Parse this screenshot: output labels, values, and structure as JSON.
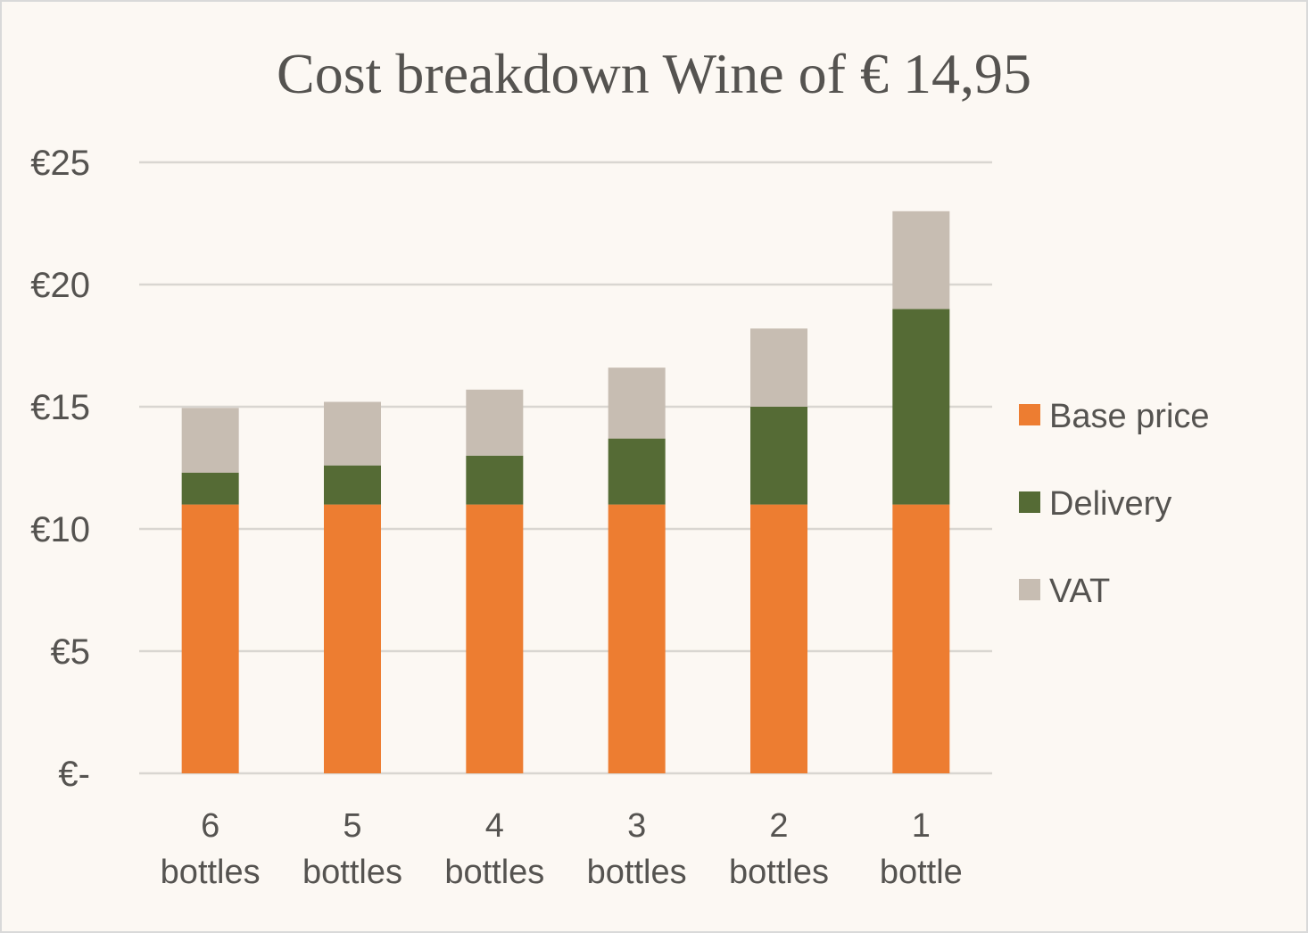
{
  "chart_data": {
    "type": "bar",
    "stacked": true,
    "title": "Cost breakdown Wine of € 14,95",
    "xlabel": "",
    "ylabel": "",
    "ylim": [
      0,
      25
    ],
    "yticks": [
      0,
      5,
      10,
      15,
      20,
      25
    ],
    "ytick_labels": [
      "€-",
      "€5",
      "€10",
      "€15",
      "€20",
      "€25"
    ],
    "categories": [
      [
        "6",
        "bottles"
      ],
      [
        "5",
        "bottles"
      ],
      [
        "4",
        "bottles"
      ],
      [
        "3",
        "bottles"
      ],
      [
        "2",
        "bottles"
      ],
      [
        "1",
        "bottle"
      ]
    ],
    "series": [
      {
        "name": "Base price",
        "color": "#ed7d31",
        "values": [
          11.0,
          11.0,
          11.0,
          11.0,
          11.0,
          11.0
        ]
      },
      {
        "name": "Delivery",
        "color": "#556b35",
        "values": [
          1.3,
          1.6,
          2.0,
          2.7,
          4.0,
          8.0
        ]
      },
      {
        "name": "VAT",
        "color": "#c7bdb2",
        "values": [
          2.65,
          2.6,
          2.7,
          2.9,
          3.2,
          4.0
        ]
      }
    ],
    "grid": true,
    "legend_position": "right"
  }
}
